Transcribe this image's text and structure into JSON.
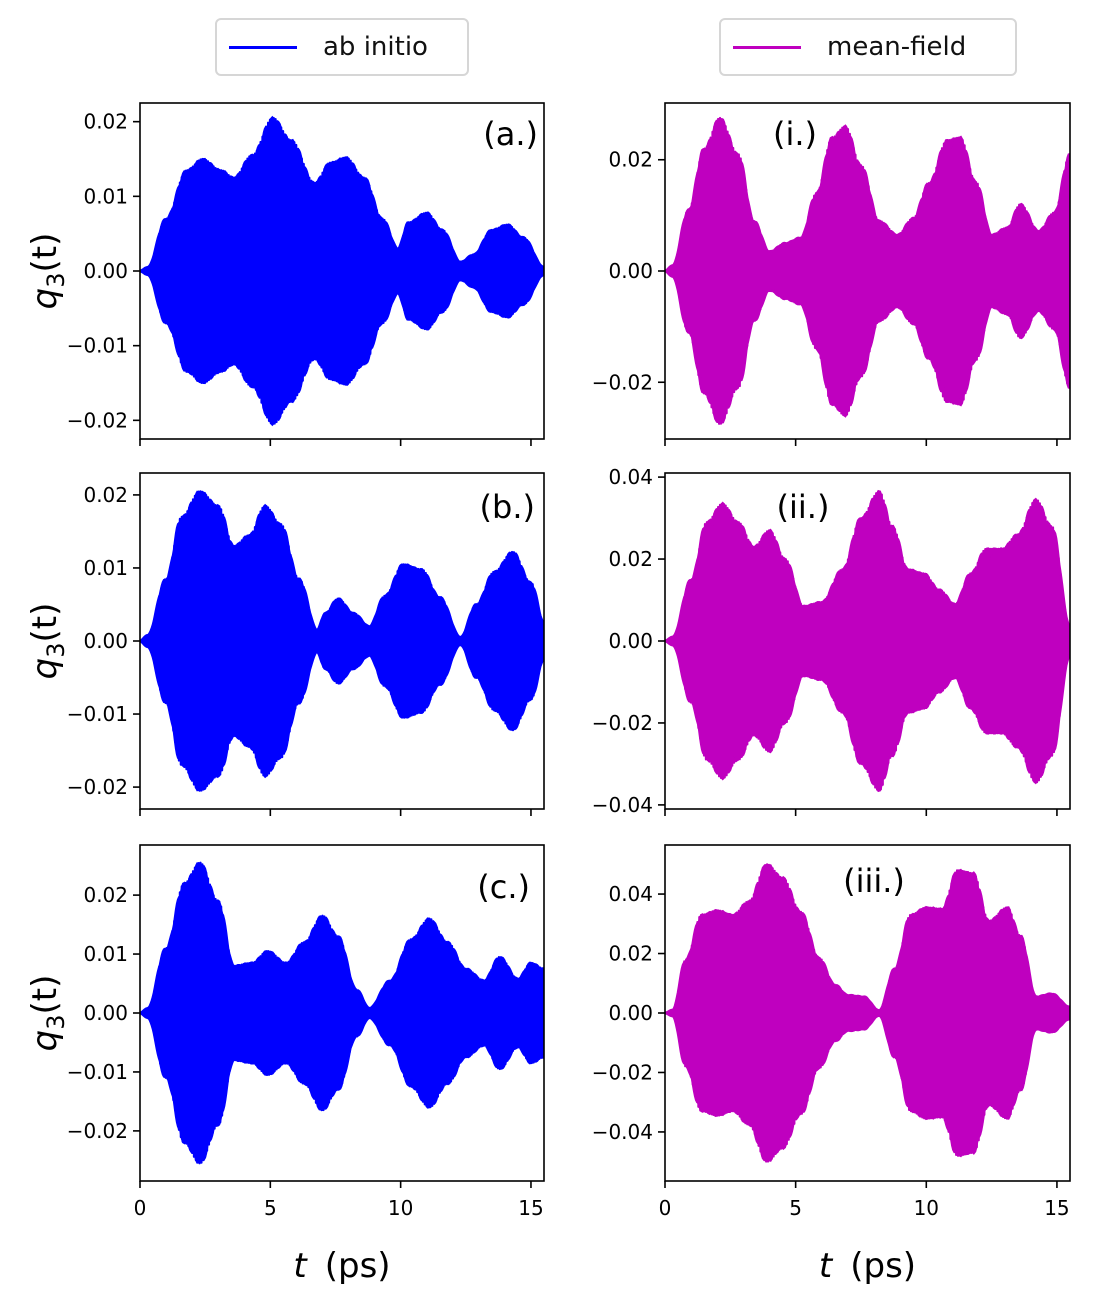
{
  "legend": [
    {
      "label": "ab initio",
      "color": "#0000ff"
    },
    {
      "label": "mean-field",
      "color": "#bf00bf"
    }
  ],
  "axis_text": {
    "ylabel_var": "q",
    "ylabel_sub": "3",
    "ylabel_arg": "(t)",
    "xlabel_var": "t",
    "xlabel_unit": "(ps)"
  },
  "chart_data": [
    {
      "type": "line",
      "panel": "(a.)",
      "series_name": "ab initio",
      "color": "#0000ff",
      "xlim": [
        0,
        15.5
      ],
      "ylim": [
        -0.0225,
        0.0225
      ],
      "xticks": [
        0,
        5,
        10,
        15
      ],
      "yticks": [
        -0.02,
        -0.01,
        0.0,
        0.01,
        0.02
      ],
      "ytick_labels": [
        "−0.02",
        "−0.01",
        "0.00",
        "0.01",
        "0.02"
      ],
      "envelope": {
        "t": [
          0,
          0.3,
          1.0,
          1.8,
          2.4,
          3.1,
          3.6,
          4.3,
          5.1,
          5.8,
          6.7,
          7.3,
          7.9,
          8.6,
          9.3,
          9.9,
          10.3,
          11.0,
          11.6,
          12.3,
          12.8,
          13.5,
          14.1,
          14.7,
          15.5
        ],
        "amplitude": [
          0,
          0.0005,
          0.007,
          0.0135,
          0.015,
          0.0135,
          0.0125,
          0.0155,
          0.0205,
          0.0175,
          0.0118,
          0.0145,
          0.0152,
          0.0125,
          0.007,
          0.003,
          0.0065,
          0.0078,
          0.0055,
          0.0012,
          0.0022,
          0.0055,
          0.0062,
          0.0045,
          0.0005
        ]
      }
    },
    {
      "type": "line",
      "panel": "(b.)",
      "series_name": "ab initio",
      "color": "#0000ff",
      "xlim": [
        0,
        15.5
      ],
      "ylim": [
        -0.023,
        0.023
      ],
      "xticks": [
        0,
        5,
        10,
        15
      ],
      "yticks": [
        -0.02,
        -0.01,
        0.0,
        0.01,
        0.02
      ],
      "ytick_labels": [
        "−0.02",
        "−0.01",
        "0.00",
        "0.01",
        "0.02"
      ],
      "envelope": {
        "t": [
          0,
          0.3,
          1.0,
          1.6,
          2.3,
          3.0,
          3.6,
          4.2,
          4.8,
          5.4,
          6.1,
          6.8,
          7.1,
          7.6,
          8.2,
          8.8,
          9.4,
          10.1,
          10.8,
          11.5,
          12.3,
          12.9,
          13.6,
          14.3,
          15.0,
          15.5
        ],
        "amplitude": [
          0,
          0.0008,
          0.0085,
          0.017,
          0.0205,
          0.0185,
          0.013,
          0.0145,
          0.0185,
          0.016,
          0.0085,
          0.0015,
          0.0038,
          0.0058,
          0.0038,
          0.002,
          0.0062,
          0.0105,
          0.0098,
          0.006,
          0.0005,
          0.005,
          0.0095,
          0.0122,
          0.008,
          0.0025
        ]
      }
    },
    {
      "type": "line",
      "panel": "(c.)",
      "series_name": "ab initio",
      "color": "#0000ff",
      "xlim": [
        0,
        15.5
      ],
      "ylim": [
        -0.0285,
        0.0285
      ],
      "xticks": [
        0,
        5,
        10,
        15
      ],
      "yticks": [
        -0.02,
        -0.01,
        0.0,
        0.01,
        0.02
      ],
      "ytick_labels": [
        "−0.02",
        "−0.01",
        "0.00",
        "0.01",
        "0.02"
      ],
      "envelope": {
        "t": [
          0,
          0.3,
          1.0,
          1.7,
          2.3,
          3.0,
          3.6,
          4.3,
          4.9,
          5.6,
          6.3,
          7.0,
          7.6,
          8.3,
          8.8,
          9.6,
          10.4,
          11.1,
          11.8,
          12.5,
          13.2,
          13.8,
          14.5,
          15.0,
          15.5
        ],
        "amplitude": [
          0,
          0.0008,
          0.011,
          0.022,
          0.0255,
          0.019,
          0.008,
          0.0085,
          0.0105,
          0.0085,
          0.012,
          0.0165,
          0.013,
          0.004,
          0.0008,
          0.0055,
          0.0125,
          0.016,
          0.012,
          0.0075,
          0.0055,
          0.0095,
          0.0058,
          0.0085,
          0.0075
        ]
      }
    },
    {
      "type": "line",
      "panel": "(i.)",
      "series_name": "mean-field",
      "color": "#bf00bf",
      "xlim": [
        0,
        15.5
      ],
      "ylim": [
        -0.0302,
        0.0302
      ],
      "xticks": [
        0,
        5,
        10,
        15
      ],
      "yticks": [
        -0.02,
        0.0,
        0.02
      ],
      "ytick_labels": [
        "−0.02",
        "0.00",
        "0.02"
      ],
      "envelope": {
        "t": [
          0,
          0.3,
          0.9,
          1.5,
          2.1,
          2.8,
          3.4,
          4.0,
          4.6,
          5.2,
          5.8,
          6.4,
          6.9,
          7.5,
          8.2,
          8.9,
          9.5,
          10.1,
          10.8,
          11.3,
          11.9,
          12.5,
          13.1,
          13.6,
          14.3,
          14.9,
          15.5
        ],
        "amplitude": [
          0,
          0.001,
          0.011,
          0.022,
          0.0275,
          0.021,
          0.009,
          0.0035,
          0.005,
          0.006,
          0.014,
          0.024,
          0.026,
          0.019,
          0.009,
          0.0065,
          0.0095,
          0.0158,
          0.0235,
          0.024,
          0.016,
          0.0065,
          0.0078,
          0.012,
          0.0072,
          0.0105,
          0.021
        ]
      }
    },
    {
      "type": "line",
      "panel": "(ii.)",
      "series_name": "mean-field",
      "color": "#bf00bf",
      "xlim": [
        0,
        15.5
      ],
      "ylim": [
        -0.041,
        0.041
      ],
      "xticks": [
        0,
        5,
        10,
        15
      ],
      "yticks": [
        -0.04,
        -0.02,
        0.0,
        0.02,
        0.04
      ],
      "ytick_labels": [
        "−0.04",
        "−0.02",
        "0.00",
        "0.02",
        "0.04"
      ],
      "envelope": {
        "t": [
          0,
          0.3,
          1.0,
          1.6,
          2.2,
          2.8,
          3.4,
          4.0,
          4.6,
          5.3,
          6.0,
          6.8,
          7.5,
          8.2,
          8.7,
          9.3,
          9.9,
          10.5,
          11.1,
          11.7,
          12.3,
          12.9,
          13.5,
          14.2,
          14.8,
          15.5
        ],
        "amplitude": [
          0,
          0.001,
          0.015,
          0.029,
          0.0335,
          0.029,
          0.023,
          0.027,
          0.02,
          0.0085,
          0.0095,
          0.0175,
          0.03,
          0.0365,
          0.028,
          0.0175,
          0.0165,
          0.0125,
          0.009,
          0.0165,
          0.0225,
          0.0225,
          0.026,
          0.0345,
          0.028,
          0.0035
        ]
      }
    },
    {
      "type": "line",
      "panel": "(iii.)",
      "series_name": "mean-field",
      "color": "#bf00bf",
      "xlim": [
        0,
        15.5
      ],
      "ylim": [
        -0.0565,
        0.0565
      ],
      "xticks": [
        0,
        5,
        10,
        15
      ],
      "yticks": [
        -0.04,
        -0.02,
        0.0,
        0.02,
        0.04
      ],
      "ytick_labels": [
        "−0.04",
        "−0.02",
        "0.00",
        "0.02",
        "0.04"
      ],
      "envelope": {
        "t": [
          0,
          0.3,
          0.8,
          1.4,
          2.0,
          2.6,
          3.2,
          3.9,
          4.5,
          5.2,
          5.9,
          6.5,
          7.0,
          7.6,
          8.2,
          8.8,
          9.4,
          10.0,
          10.6,
          11.2,
          11.8,
          12.4,
          13.1,
          13.6,
          14.2,
          14.8,
          15.5
        ],
        "amplitude": [
          0,
          0.001,
          0.018,
          0.033,
          0.0345,
          0.033,
          0.0375,
          0.05,
          0.0455,
          0.034,
          0.0185,
          0.0095,
          0.006,
          0.0055,
          0.0008,
          0.015,
          0.033,
          0.0355,
          0.035,
          0.048,
          0.047,
          0.031,
          0.0355,
          0.026,
          0.0055,
          0.0065,
          0.002
        ]
      }
    }
  ]
}
